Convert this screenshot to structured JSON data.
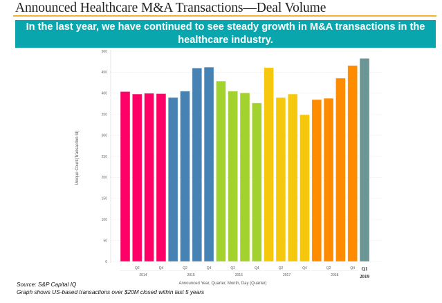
{
  "header": {
    "title": "Announced Healthcare M&A Transactions—Deal Volume",
    "banner": "In the last year, we have continued to see steady growth in M&A transactions in the healthcare industry."
  },
  "footer": {
    "source": "Source:  S&P Capital IQ",
    "note": "Graph shows US-based transactions over $20M closed within last 5 years"
  },
  "colors": {
    "2014": "#ff0066",
    "2015": "#4682b4",
    "2016": "#a3d12e",
    "2017": "#f5c80e",
    "2018": "#ff8c00",
    "2019": "#6b9694",
    "rule": "#f0b429",
    "banner": "#0aa6ad"
  },
  "chart_data": {
    "type": "bar",
    "title": "",
    "xlabel": "Announced Year, Quarter, Month, Day (Quarter)",
    "ylabel": "Unique Count(Transaction Id)",
    "ylim": [
      0,
      500
    ],
    "yticks": [
      0,
      50,
      100,
      150,
      200,
      250,
      300,
      350,
      400,
      450,
      500
    ],
    "grid": true,
    "categories": [
      "2014 Q1",
      "2014 Q2",
      "2014 Q3",
      "2014 Q4",
      "2015 Q1",
      "2015 Q2",
      "2015 Q3",
      "2015 Q4",
      "2016 Q1",
      "2016 Q2",
      "2016 Q3",
      "2016 Q4",
      "2017 Q1",
      "2017 Q2",
      "2017 Q3",
      "2017 Q4",
      "2018 Q1",
      "2018 Q2",
      "2018 Q3",
      "2018 Q4",
      "2019 Q1"
    ],
    "years": [
      "2014",
      "2014",
      "2014",
      "2014",
      "2015",
      "2015",
      "2015",
      "2015",
      "2016",
      "2016",
      "2016",
      "2016",
      "2017",
      "2017",
      "2017",
      "2017",
      "2018",
      "2018",
      "2018",
      "2018",
      "2019"
    ],
    "values": [
      404,
      398,
      400,
      399,
      390,
      405,
      460,
      462,
      429,
      405,
      401,
      377,
      461,
      390,
      398,
      349,
      385,
      388,
      436,
      466,
      483
    ],
    "quarter_labels": [
      {
        "index": 1,
        "label": "Q2"
      },
      {
        "index": 3,
        "label": "Q4"
      },
      {
        "index": 5,
        "label": "Q2"
      },
      {
        "index": 7,
        "label": "Q4"
      },
      {
        "index": 9,
        "label": "Q2"
      },
      {
        "index": 11,
        "label": "Q4"
      },
      {
        "index": 13,
        "label": "Q2"
      },
      {
        "index": 15,
        "label": "Q4"
      },
      {
        "index": 17,
        "label": "Q2"
      },
      {
        "index": 19,
        "label": "Q4"
      },
      {
        "index": 20,
        "label": "Q1",
        "bold": true
      }
    ],
    "year_labels": [
      {
        "label": "2014",
        "start": 0,
        "end": 3
      },
      {
        "label": "2015",
        "start": 4,
        "end": 7
      },
      {
        "label": "2016",
        "start": 8,
        "end": 11
      },
      {
        "label": "2017",
        "start": 12,
        "end": 15
      },
      {
        "label": "2018",
        "start": 16,
        "end": 19
      },
      {
        "label": "2019",
        "start": 20,
        "end": 20,
        "bold": true
      }
    ],
    "legend": "none"
  }
}
